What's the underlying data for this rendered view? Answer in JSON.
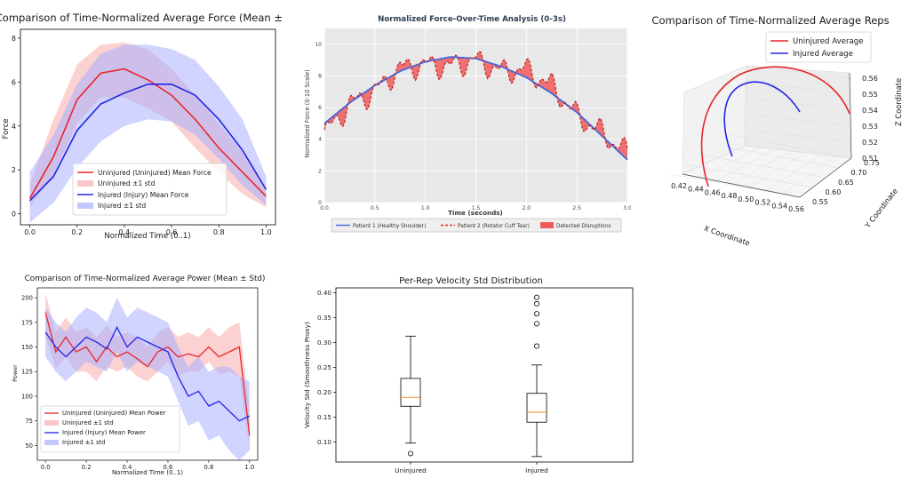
{
  "force": {
    "title": "Comparison of Time-Normalized Average Force (Mean ± Std)",
    "xlabel": "Normalized Time (0..1)",
    "ylabel": "Force",
    "xticks": [
      "0.0",
      "0.2",
      "0.4",
      "0.6",
      "0.8",
      "1.0"
    ],
    "yticks": [
      "0",
      "2",
      "4",
      "6",
      "8"
    ],
    "legend": [
      "Uninjured (Uninjured) Mean Force",
      "Uninjured ±1 std",
      "Injured (Injury) Mean Force",
      "Injured ±1 std"
    ]
  },
  "analysis": {
    "title": "Normalized Force-Over-Time Analysis (0-3s)",
    "xlabel": "Time (seconds)",
    "ylabel": "Normalized Force (0-10 Scale)",
    "xticks": [
      "0.0",
      "0.5",
      "1.0",
      "1.5",
      "2.0",
      "2.5",
      "3.0"
    ],
    "yticks": [
      "0",
      "2",
      "4",
      "6",
      "8",
      "10"
    ],
    "legend": [
      "Patient 1 (Healthy Shoulder)",
      "Patient 2 (Rotator Cuff Tear)",
      "Detected Disruptions"
    ]
  },
  "reps3d": {
    "title": "Comparison of Time-Normalized Average Reps",
    "xlabel": "X Coordinate",
    "ylabel": "Y Coordinate",
    "zlabel": "Z Coordinate",
    "xticks": [
      "0.42",
      "0.44",
      "0.46",
      "0.48",
      "0.50",
      "0.52",
      "0.54",
      "0.56"
    ],
    "yticks": [
      "0.55",
      "0.60",
      "0.65",
      "0.70",
      "0.75"
    ],
    "zticks": [
      "0.51",
      "0.52",
      "0.53",
      "0.54",
      "0.55",
      "0.56"
    ],
    "legend": [
      "Uninjured Average",
      "Injured Average"
    ]
  },
  "power": {
    "title": "Comparison of Time-Normalized Average Power (Mean ± Std)",
    "xlabel": "Normalized Time (0..1)",
    "ylabel": "Power",
    "xticks": [
      "0.0",
      "0.2",
      "0.4",
      "0.6",
      "0.8",
      "1.0"
    ],
    "yticks": [
      "50",
      "75",
      "100",
      "125",
      "150",
      "175",
      "200"
    ],
    "legend": [
      "Uninjured (Uninjured) Mean Power",
      "Uninjured ±1 std",
      "Injured (Injury) Mean Power",
      "Injured ±1 std"
    ]
  },
  "velocity": {
    "title": "Per-Rep Velocity Std Distribution",
    "ylabel": "Velocity Std (Smoothness Proxy)",
    "categories": [
      "Uninjured",
      "Injured"
    ],
    "yticks": [
      "0.10",
      "0.15",
      "0.20",
      "0.25",
      "0.30",
      "0.35",
      "0.40"
    ]
  },
  "chart_data": [
    {
      "type": "line",
      "title": "Comparison of Time-Normalized Average Force (Mean ± Std)",
      "xlabel": "Normalized Time (0..1)",
      "ylabel": "Force",
      "xlim": [
        -0.04,
        1.04
      ],
      "ylim": [
        -0.5,
        8.4
      ],
      "grid": false,
      "legend_position": "lower-center",
      "colors": {
        "uninjured": "#e8262b",
        "injured": "#2424e6"
      },
      "x": [
        0.0,
        0.1,
        0.2,
        0.3,
        0.4,
        0.5,
        0.6,
        0.7,
        0.8,
        0.9,
        1.0
      ],
      "series": [
        {
          "name": "Uninjured (Uninjured) Mean Force",
          "values": [
            0.7,
            2.6,
            5.2,
            6.4,
            6.6,
            6.1,
            5.4,
            4.3,
            3.0,
            1.9,
            0.8
          ]
        },
        {
          "name": "Uninjured ±1 std",
          "lower": [
            0.3,
            1.8,
            4.1,
            5.3,
            5.3,
            4.8,
            4.2,
            3.0,
            1.9,
            0.9,
            0.3
          ],
          "upper": [
            1.3,
            4.3,
            6.8,
            7.7,
            7.8,
            7.5,
            6.6,
            5.4,
            4.1,
            2.8,
            1.2
          ]
        },
        {
          "name": "Injured (Injury) Mean Force",
          "values": [
            0.6,
            1.7,
            3.8,
            5.0,
            5.5,
            5.9,
            5.9,
            5.4,
            4.3,
            2.9,
            1.1
          ]
        },
        {
          "name": "Injured ±1 std",
          "lower": [
            -0.4,
            0.5,
            2.1,
            3.3,
            4.0,
            4.3,
            4.2,
            3.6,
            2.5,
            1.3,
            0.4
          ],
          "upper": [
            1.9,
            3.6,
            5.9,
            7.3,
            7.7,
            7.7,
            7.5,
            7.0,
            5.8,
            4.3,
            1.7
          ]
        }
      ]
    },
    {
      "type": "line",
      "title": "Normalized Force-Over-Time Analysis (0-3s)",
      "xlabel": "Time (seconds)",
      "ylabel": "Normalized Force (0-10 Scale)",
      "xlim": [
        0,
        3
      ],
      "ylim": [
        0,
        11
      ],
      "grid": true,
      "legend_position": "below",
      "colors": {
        "patient1": "#4466dd",
        "patient2": "#e8262b",
        "disruptions": "#f05a5a"
      },
      "x": [
        0.0,
        0.25,
        0.5,
        0.75,
        1.0,
        1.25,
        1.5,
        1.75,
        2.0,
        2.25,
        2.5,
        2.75,
        3.0
      ],
      "series": [
        {
          "name": "Patient 1 (Healthy Shoulder)",
          "values": [
            5.0,
            6.3,
            7.4,
            8.3,
            8.9,
            9.2,
            9.1,
            8.6,
            7.9,
            6.9,
            5.7,
            4.2,
            2.7
          ]
        },
        {
          "name": "Patient 2 (Rotator Cuff Tear)",
          "values": [
            4.3,
            6.2,
            7.0,
            8.5,
            8.7,
            8.6,
            9.0,
            8.3,
            8.4,
            7.4,
            5.5,
            4.4,
            3.1
          ]
        },
        {
          "name": "Detected Disruptions"
        }
      ]
    },
    {
      "type": "line3d",
      "title": "Comparison of Time-Normalized Average Reps",
      "xlabel": "X Coordinate",
      "ylabel": "Y Coordinate",
      "zlabel": "Z Coordinate",
      "xlim": [
        0.42,
        0.56
      ],
      "ylim": [
        0.55,
        0.75
      ],
      "zlim": [
        0.51,
        0.56
      ],
      "legend_position": "top-right",
      "colors": {
        "uninjured": "#e8262b",
        "injured": "#2424e6"
      },
      "series": [
        {
          "name": "Uninjured Average"
        },
        {
          "name": "Injured Average"
        }
      ]
    },
    {
      "type": "line",
      "title": "Comparison of Time-Normalized Average Power (Mean ± Std)",
      "xlabel": "Normalized Time (0..1)",
      "ylabel": "Power",
      "xlim": [
        -0.04,
        1.04
      ],
      "ylim": [
        35,
        210
      ],
      "grid": false,
      "legend_position": "lower-left",
      "colors": {
        "uninjured": "#e8262b",
        "injured": "#2424e6"
      },
      "x": [
        0.0,
        0.05,
        0.1,
        0.15,
        0.2,
        0.25,
        0.3,
        0.35,
        0.4,
        0.45,
        0.5,
        0.55,
        0.6,
        0.65,
        0.7,
        0.75,
        0.8,
        0.85,
        0.9,
        0.95,
        1.0
      ],
      "series": [
        {
          "name": "Uninjured (Uninjured) Mean Power",
          "values": [
            185,
            145,
            160,
            145,
            150,
            135,
            150,
            140,
            145,
            138,
            130,
            145,
            150,
            140,
            143,
            140,
            150,
            140,
            145,
            150,
            60
          ]
        },
        {
          "name": "Uninjured ±1 std",
          "lower": [
            160,
            128,
            140,
            125,
            125,
            115,
            130,
            125,
            130,
            120,
            115,
            125,
            135,
            120,
            125,
            125,
            135,
            122,
            125,
            120,
            45
          ],
          "upper": [
            205,
            165,
            180,
            165,
            170,
            160,
            172,
            160,
            165,
            160,
            150,
            165,
            170,
            160,
            165,
            160,
            170,
            160,
            170,
            175,
            85
          ]
        },
        {
          "name": "Injured (Injury) Mean Power",
          "values": [
            165,
            150,
            140,
            150,
            160,
            155,
            148,
            170,
            150,
            160,
            155,
            150,
            145,
            120,
            100,
            105,
            90,
            95,
            85,
            75,
            80
          ]
        },
        {
          "name": "Injured ±1 std",
          "lower": [
            140,
            125,
            115,
            125,
            135,
            130,
            125,
            145,
            125,
            135,
            130,
            125,
            120,
            95,
            70,
            75,
            55,
            60,
            45,
            35,
            45
          ],
          "upper": [
            190,
            175,
            165,
            180,
            190,
            185,
            175,
            200,
            180,
            190,
            185,
            180,
            175,
            150,
            130,
            140,
            125,
            130,
            130,
            120,
            115
          ]
        }
      ]
    },
    {
      "type": "box",
      "title": "Per-Rep Velocity Std Distribution",
      "ylabel": "Velocity Std (Smoothness Proxy)",
      "categories": [
        "Uninjured",
        "Injured"
      ],
      "ylim": [
        0.06,
        0.41
      ],
      "series": [
        {
          "name": "Uninjured",
          "whisker_low": 0.098,
          "q1": 0.172,
          "median": 0.19,
          "q3": 0.228,
          "whisker_high": 0.313,
          "outliers": [
            0.077
          ]
        },
        {
          "name": "Injured",
          "whisker_low": 0.071,
          "q1": 0.14,
          "median": 0.16,
          "q3": 0.198,
          "whisker_high": 0.255,
          "outliers": [
            0.293,
            0.338,
            0.358,
            0.378,
            0.391
          ]
        }
      ]
    }
  ]
}
